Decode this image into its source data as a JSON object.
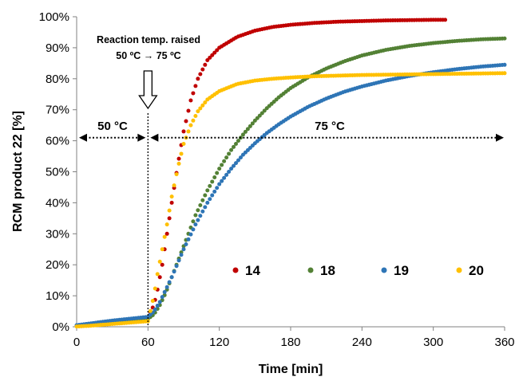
{
  "chart_data": {
    "type": "scatter",
    "title": "",
    "xlabel": "Time [min]",
    "ylabel": "RCM product 22 [%]",
    "xlim": [
      0,
      360
    ],
    "ylim": [
      0,
      100
    ],
    "xticks": [
      0,
      60,
      120,
      180,
      240,
      300,
      360
    ],
    "yticks": [
      0,
      10,
      20,
      30,
      40,
      50,
      60,
      70,
      80,
      90,
      100
    ],
    "ytick_labels": [
      "0%",
      "10%",
      "20%",
      "30%",
      "40%",
      "50%",
      "60%",
      "70%",
      "80%",
      "90%",
      "100%"
    ],
    "grid": false,
    "legend_position": "lower-center",
    "series": [
      {
        "name": "14",
        "color": "#c00000",
        "points": [
          [
            0,
            0.3
          ],
          [
            10,
            0.8
          ],
          [
            20,
            1.3
          ],
          [
            30,
            1.8
          ],
          [
            40,
            2.2
          ],
          [
            50,
            2.6
          ],
          [
            60,
            3.0
          ],
          [
            65,
            7
          ],
          [
            68,
            12
          ],
          [
            72,
            20
          ],
          [
            76,
            30
          ],
          [
            80,
            40
          ],
          [
            85,
            52
          ],
          [
            90,
            63
          ],
          [
            96,
            73
          ],
          [
            102,
            80
          ],
          [
            110,
            86
          ],
          [
            120,
            90
          ],
          [
            135,
            93.5
          ],
          [
            150,
            95.5
          ],
          [
            165,
            96.7
          ],
          [
            180,
            97.4
          ],
          [
            200,
            98
          ],
          [
            220,
            98.4
          ],
          [
            240,
            98.6
          ],
          [
            260,
            98.8
          ],
          [
            280,
            98.9
          ],
          [
            300,
            99
          ],
          [
            310,
            99
          ]
        ]
      },
      {
        "name": "18",
        "color": "#538135",
        "points": [
          [
            0,
            0.2
          ],
          [
            10,
            0.6
          ],
          [
            20,
            1.0
          ],
          [
            30,
            1.4
          ],
          [
            40,
            1.8
          ],
          [
            50,
            2.2
          ],
          [
            60,
            2.6
          ],
          [
            65,
            4
          ],
          [
            70,
            7
          ],
          [
            75,
            11
          ],
          [
            80,
            16
          ],
          [
            85,
            21
          ],
          [
            90,
            26
          ],
          [
            95,
            31
          ],
          [
            100,
            36
          ],
          [
            110,
            44
          ],
          [
            120,
            51
          ],
          [
            130,
            57
          ],
          [
            140,
            62
          ],
          [
            150,
            66.5
          ],
          [
            160,
            70.5
          ],
          [
            170,
            74
          ],
          [
            180,
            77
          ],
          [
            195,
            80.5
          ],
          [
            210,
            83.3
          ],
          [
            225,
            85.6
          ],
          [
            240,
            87.5
          ],
          [
            260,
            89.3
          ],
          [
            280,
            90.6
          ],
          [
            300,
            91.5
          ],
          [
            320,
            92.2
          ],
          [
            340,
            92.7
          ],
          [
            360,
            93
          ]
        ]
      },
      {
        "name": "19",
        "color": "#2e75b6",
        "points": [
          [
            0,
            0.5
          ],
          [
            10,
            1.0
          ],
          [
            20,
            1.5
          ],
          [
            30,
            2.0
          ],
          [
            40,
            2.4
          ],
          [
            50,
            2.8
          ],
          [
            60,
            3.2
          ],
          [
            65,
            5
          ],
          [
            70,
            8
          ],
          [
            75,
            12
          ],
          [
            80,
            16
          ],
          [
            85,
            20.5
          ],
          [
            90,
            25
          ],
          [
            95,
            29
          ],
          [
            100,
            33
          ],
          [
            110,
            40
          ],
          [
            120,
            46
          ],
          [
            130,
            51
          ],
          [
            140,
            55.5
          ],
          [
            150,
            59.2
          ],
          [
            160,
            62.5
          ],
          [
            170,
            65.3
          ],
          [
            180,
            67.8
          ],
          [
            195,
            71
          ],
          [
            210,
            73.6
          ],
          [
            225,
            75.8
          ],
          [
            240,
            77.5
          ],
          [
            260,
            79.4
          ],
          [
            280,
            80.9
          ],
          [
            300,
            82.1
          ],
          [
            320,
            83.1
          ],
          [
            340,
            83.9
          ],
          [
            360,
            84.5
          ]
        ]
      },
      {
        "name": "20",
        "color": "#ffc000",
        "points": [
          [
            0,
            0.1
          ],
          [
            10,
            0.3
          ],
          [
            20,
            0.6
          ],
          [
            30,
            0.9
          ],
          [
            40,
            1.2
          ],
          [
            50,
            1.5
          ],
          [
            60,
            1.8
          ],
          [
            65,
            10
          ],
          [
            68,
            17
          ],
          [
            72,
            25
          ],
          [
            76,
            33
          ],
          [
            80,
            42
          ],
          [
            85,
            51
          ],
          [
            90,
            59
          ],
          [
            96,
            65
          ],
          [
            102,
            69.5
          ],
          [
            110,
            73.3
          ],
          [
            120,
            76
          ],
          [
            135,
            78.3
          ],
          [
            150,
            79.4
          ],
          [
            165,
            80
          ],
          [
            180,
            80.4
          ],
          [
            200,
            80.8
          ],
          [
            220,
            81
          ],
          [
            240,
            81.2
          ],
          [
            260,
            81.3
          ],
          [
            280,
            81.4
          ],
          [
            300,
            81.5
          ],
          [
            320,
            81.6
          ],
          [
            340,
            81.7
          ],
          [
            360,
            81.8
          ]
        ]
      }
    ],
    "annotations": {
      "raise_line1": "Reaction temp. raised",
      "raise_line2": "50 ºC → 75 ºC",
      "label_50": "50 °C",
      "label_75": "75 °C"
    }
  }
}
